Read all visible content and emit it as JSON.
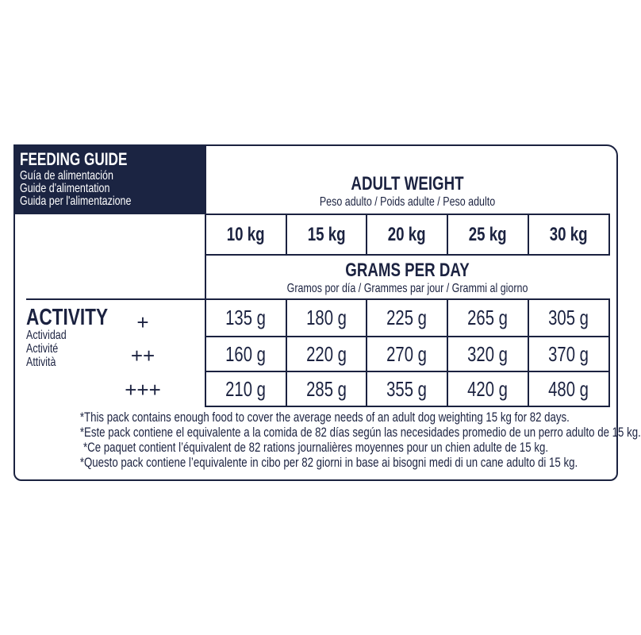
{
  "header": {
    "title": "FEEDING GUIDE",
    "subtitles": [
      "Guía de alimentación",
      "Guide d'alimentation",
      "Guida per l'alimentazione"
    ]
  },
  "adult_weight": {
    "title": "ADULT WEIGHT",
    "subtitle": "Peso adulto / Poids adulte / Peso adulto"
  },
  "weights": [
    "10 kg",
    "15 kg",
    "20 kg",
    "25 kg",
    "30 kg"
  ],
  "grams_per_day": {
    "title": "GRAMS PER DAY",
    "subtitle": "Gramos por día / Grammes par jour / Grammi al giorno"
  },
  "activity": {
    "title": "ACTIVITY",
    "subtitles": [
      "Actividad",
      "Activité",
      "Attività"
    ]
  },
  "rows": [
    {
      "level": "+",
      "values": [
        "135 g",
        "180 g",
        "225 g",
        "265 g",
        "305 g"
      ]
    },
    {
      "level": "++",
      "values": [
        "160 g",
        "220 g",
        "270 g",
        "320 g",
        "370 g"
      ]
    },
    {
      "level": "+++",
      "values": [
        "210 g",
        "285 g",
        "355 g",
        "420 g",
        "480 g"
      ]
    }
  ],
  "footnotes": [
    "*This pack contains enough food to cover the average needs of an adult dog weighting 15 kg for 82 days.",
    "*Este pack contiene el equivalente a la comida de 82 días según las necesidades promedio de un perro adulto de 15 kg.",
    "*Ce paquet contient l’équivalent de 82 rations journalières moyennes pour un chien adulte de 15 kg.",
    "*Questo pack contiene l’equivalente in cibo per 82 giorni in base ai bisogni medi di un cane adulto di 15 kg."
  ],
  "colors": {
    "navy": "#1b2442"
  }
}
